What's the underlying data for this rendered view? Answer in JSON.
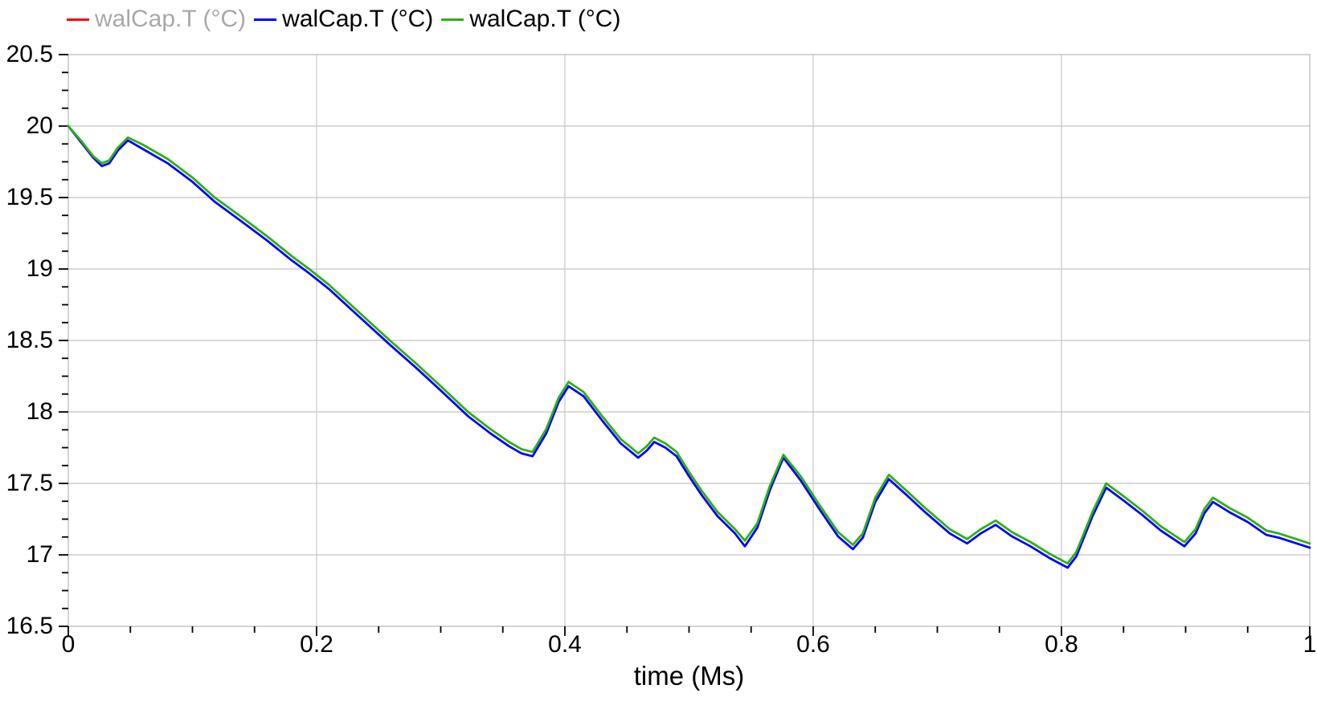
{
  "legend": {
    "items": [
      {
        "label": "walCap.T (°C)",
        "marker_color": "#ff0000",
        "text_color": "#a9a9a9",
        "active": false
      },
      {
        "label": "walCap.T (°C)",
        "marker_color": "#0000ff",
        "text_color": "#000000",
        "active": true
      },
      {
        "label": "walCap.T (°C)",
        "marker_color": "#2eb10e",
        "text_color": "#000000",
        "active": true
      }
    ]
  },
  "chart_data": {
    "type": "line",
    "title": "",
    "xlabel": "time (Ms)",
    "ylabel": "",
    "xlim": [
      0,
      1
    ],
    "ylim": [
      16.5,
      20.5
    ],
    "x_ticks": [
      0,
      0.2,
      0.4,
      0.6,
      0.8,
      1
    ],
    "x_tick_labels": [
      "0",
      "0.2",
      "0.4",
      "0.6",
      "0.8",
      "1"
    ],
    "x_minor_step": 0.05,
    "y_ticks": [
      16.5,
      17,
      17.5,
      18,
      18.5,
      19,
      19.5,
      20,
      20.5
    ],
    "y_tick_labels": [
      "16.5",
      "17",
      "17.5",
      "18",
      "18.5",
      "19",
      "19.5",
      "20",
      "20.5"
    ],
    "y_minor_step": 0.125,
    "grid": true,
    "grid_color": "#cdcdcd",
    "frame_color": "#c0c0c0",
    "tick_color": "#000000",
    "background_color": "#ffffff",
    "legend_position": "top-left",
    "series": [
      {
        "name": "walCap.T (°C)",
        "color": "#ff0000",
        "visible": false,
        "x": [],
        "values": []
      },
      {
        "name": "walCap.T (°C)",
        "color": "#0000ff",
        "visible": true,
        "x": [
          0.0,
          0.01,
          0.02,
          0.027,
          0.033,
          0.04,
          0.048,
          0.06,
          0.08,
          0.1,
          0.118,
          0.14,
          0.16,
          0.18,
          0.194,
          0.21,
          0.23,
          0.259,
          0.28,
          0.3,
          0.322,
          0.34,
          0.355,
          0.365,
          0.374,
          0.385,
          0.395,
          0.403,
          0.415,
          0.43,
          0.445,
          0.459,
          0.466,
          0.472,
          0.481,
          0.49,
          0.5,
          0.51,
          0.523,
          0.537,
          0.545,
          0.555,
          0.565,
          0.576,
          0.59,
          0.605,
          0.62,
          0.632,
          0.64,
          0.65,
          0.661,
          0.675,
          0.69,
          0.71,
          0.724,
          0.735,
          0.747,
          0.76,
          0.775,
          0.79,
          0.805,
          0.812,
          0.825,
          0.836,
          0.85,
          0.865,
          0.88,
          0.899,
          0.908,
          0.915,
          0.922,
          0.935,
          0.95,
          0.965,
          0.975,
          1.0
        ],
        "values": [
          20.0,
          19.89,
          19.78,
          19.72,
          19.74,
          19.83,
          19.9,
          19.84,
          19.74,
          19.61,
          19.47,
          19.33,
          19.2,
          19.06,
          18.97,
          18.86,
          18.7,
          18.47,
          18.31,
          18.15,
          17.97,
          17.85,
          17.76,
          17.71,
          17.69,
          17.85,
          18.07,
          18.18,
          18.11,
          17.94,
          17.78,
          17.68,
          17.73,
          17.79,
          17.75,
          17.69,
          17.55,
          17.42,
          17.27,
          17.15,
          17.06,
          17.19,
          17.45,
          17.68,
          17.52,
          17.32,
          17.13,
          17.04,
          17.12,
          17.37,
          17.53,
          17.42,
          17.3,
          17.15,
          17.08,
          17.15,
          17.21,
          17.13,
          17.06,
          16.98,
          16.91,
          16.99,
          17.27,
          17.47,
          17.38,
          17.28,
          17.17,
          17.06,
          17.15,
          17.29,
          17.37,
          17.3,
          17.23,
          17.14,
          17.12,
          17.05
        ]
      },
      {
        "name": "walCap.T (°C)",
        "color": "#2eb10e",
        "visible": true,
        "x": [
          0.0,
          0.01,
          0.02,
          0.027,
          0.033,
          0.04,
          0.048,
          0.06,
          0.08,
          0.1,
          0.118,
          0.14,
          0.16,
          0.18,
          0.194,
          0.21,
          0.23,
          0.259,
          0.28,
          0.3,
          0.322,
          0.34,
          0.355,
          0.365,
          0.374,
          0.385,
          0.395,
          0.403,
          0.415,
          0.43,
          0.445,
          0.459,
          0.466,
          0.472,
          0.481,
          0.49,
          0.5,
          0.51,
          0.523,
          0.537,
          0.545,
          0.555,
          0.565,
          0.576,
          0.59,
          0.605,
          0.62,
          0.632,
          0.64,
          0.65,
          0.661,
          0.675,
          0.69,
          0.71,
          0.724,
          0.735,
          0.747,
          0.76,
          0.775,
          0.79,
          0.805,
          0.812,
          0.825,
          0.836,
          0.85,
          0.865,
          0.88,
          0.899,
          0.908,
          0.915,
          0.922,
          0.935,
          0.95,
          0.965,
          0.975,
          1.0
        ],
        "values": [
          20.0,
          19.9,
          19.79,
          19.74,
          19.76,
          19.85,
          19.92,
          19.87,
          19.77,
          19.64,
          19.5,
          19.36,
          19.23,
          19.09,
          19.0,
          18.89,
          18.73,
          18.5,
          18.34,
          18.18,
          18.0,
          17.88,
          17.79,
          17.74,
          17.72,
          17.88,
          18.1,
          18.21,
          18.14,
          17.97,
          17.81,
          17.71,
          17.76,
          17.82,
          17.78,
          17.72,
          17.58,
          17.45,
          17.3,
          17.18,
          17.1,
          17.22,
          17.48,
          17.7,
          17.55,
          17.35,
          17.16,
          17.07,
          17.15,
          17.4,
          17.56,
          17.45,
          17.33,
          17.18,
          17.11,
          17.18,
          17.24,
          17.16,
          17.09,
          17.01,
          16.94,
          17.02,
          17.3,
          17.5,
          17.41,
          17.31,
          17.2,
          17.09,
          17.18,
          17.32,
          17.4,
          17.33,
          17.26,
          17.17,
          17.15,
          17.08
        ]
      }
    ]
  }
}
